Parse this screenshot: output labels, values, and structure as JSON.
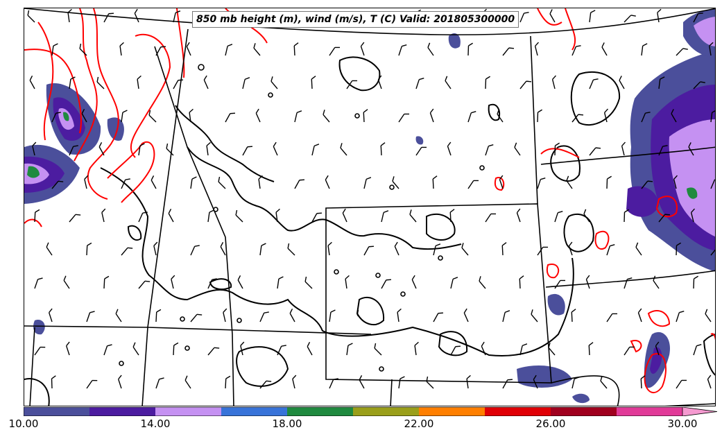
{
  "title": "850 mb height (m), wind (m/s), T (C) Valid: 201805300000",
  "colorbar": {
    "min": 10,
    "max": 30,
    "step": 2,
    "tick_labels": [
      "10.00",
      "14.00",
      "18.00",
      "22.00",
      "26.00",
      "30.00"
    ],
    "colors": [
      "#4b4f9b",
      "#4c1ca0",
      "#c591f2",
      "#3873d9",
      "#1f8a3f",
      "#9a9f1a",
      "#ff7f00",
      "#e00006",
      "#a0001e",
      "#e13a98",
      "#f59ad0"
    ]
  },
  "map": {
    "shading_palette": {
      "low": "#4b4f9b",
      "mid": "#4c1ca0",
      "high": "#c591f2",
      "peak": "#3873d9",
      "max": "#1f8a3f"
    },
    "temperature_contour_color": "#ff0000",
    "height_contour_color": "#000000",
    "boundary_color": "#000000"
  }
}
